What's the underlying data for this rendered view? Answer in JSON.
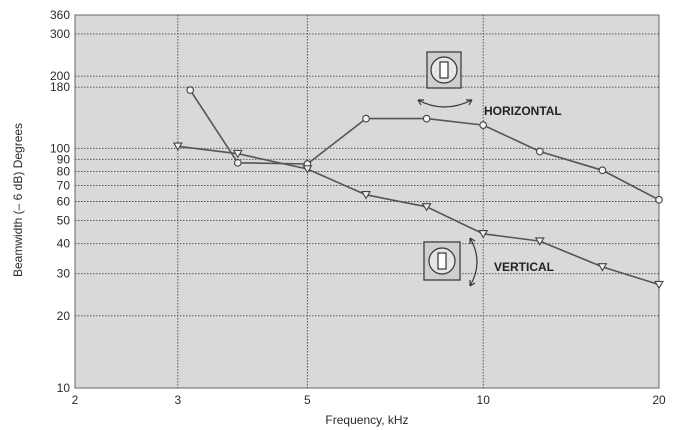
{
  "chart_data": {
    "type": "line",
    "xlabel": "Frequency, kHz",
    "ylabel": "Beamwidth (– 6 dB) Degrees",
    "x_scale": "log",
    "y_scale": "log",
    "xlim": [
      2,
      20
    ],
    "ylim": [
      10,
      360
    ],
    "x_ticks": [
      2,
      3,
      5,
      10,
      20
    ],
    "y_ticks": [
      10,
      20,
      30,
      40,
      50,
      60,
      70,
      80,
      90,
      100,
      180,
      200,
      300,
      360
    ],
    "grid": true,
    "series": [
      {
        "name": "HORIZONTAL",
        "marker": "circle",
        "x": [
          3.15,
          3.8,
          5.0,
          6.3,
          8.0,
          10.0,
          12.5,
          16.0,
          20.0
        ],
        "y": [
          175,
          87,
          86,
          133,
          133,
          125,
          97,
          81,
          61
        ]
      },
      {
        "name": "VERTICAL",
        "marker": "triangle-down",
        "x": [
          3.0,
          3.8,
          5.0,
          6.3,
          8.0,
          10.0,
          12.5,
          16.0,
          20.0
        ],
        "y": [
          102,
          95,
          82,
          64,
          57,
          44,
          41,
          32,
          27
        ]
      }
    ]
  },
  "colors": {
    "plot_background": "#d9d9d9",
    "line": "#555555",
    "grid": "#444444"
  }
}
